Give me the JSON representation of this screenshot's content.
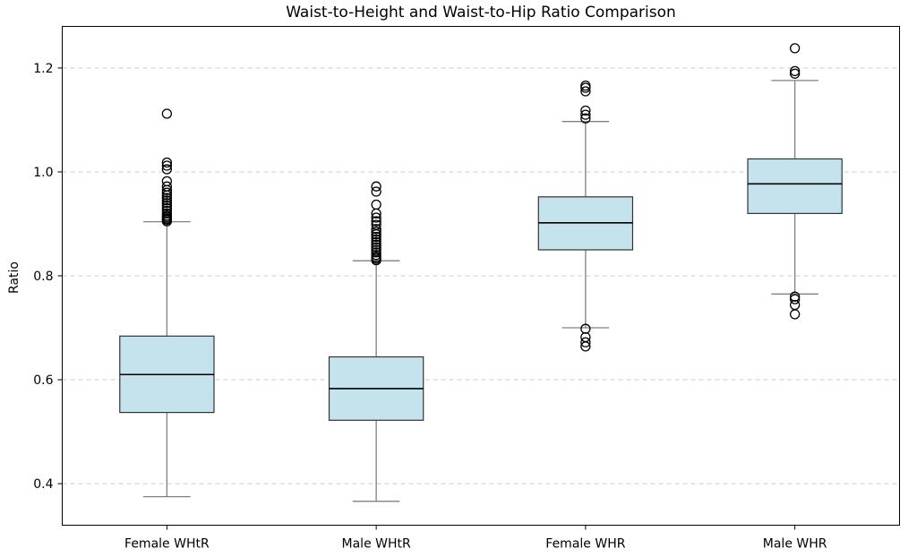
{
  "chart_data": {
    "type": "boxplot",
    "title": "Waist-to-Height and Waist-to-Hip Ratio Comparison",
    "xlabel": "",
    "ylabel": "Ratio",
    "ylim": [
      0.32,
      1.28
    ],
    "yticks": [
      0.4,
      0.6,
      0.8,
      1.0,
      1.2
    ],
    "ytick_labels": [
      "0.4",
      "0.6",
      "0.8",
      "1.0",
      "1.2"
    ],
    "grid": "y-dashed",
    "colors": {
      "box_fill": "#c4e3ed",
      "box_edge": "#333333",
      "whisker": "#808080",
      "median": "#000000"
    },
    "categories": [
      "Female WHtR",
      "Male WHtR",
      "Female WHR",
      "Male WHR"
    ],
    "boxes": [
      {
        "whislo": 0.375,
        "q1": 0.537,
        "med": 0.61,
        "q3": 0.684,
        "whishi": 0.904,
        "fliers": [
          0.905,
          0.908,
          0.91,
          0.913,
          0.916,
          0.92,
          0.925,
          0.93,
          0.935,
          0.94,
          0.945,
          0.95,
          0.955,
          0.96,
          0.965,
          0.972,
          0.982,
          1.005,
          1.012,
          1.018,
          1.112
        ]
      },
      {
        "whislo": 0.366,
        "q1": 0.522,
        "med": 0.583,
        "q3": 0.644,
        "whishi": 0.829,
        "fliers": [
          0.83,
          0.833,
          0.836,
          0.84,
          0.845,
          0.85,
          0.855,
          0.86,
          0.865,
          0.87,
          0.875,
          0.88,
          0.885,
          0.89,
          0.898,
          0.905,
          0.912,
          0.92,
          0.937,
          0.962,
          0.972
        ]
      },
      {
        "whislo": 0.7,
        "q1": 0.85,
        "med": 0.902,
        "q3": 0.952,
        "whishi": 1.097,
        "fliers": [
          0.664,
          0.672,
          0.682,
          0.698,
          1.103,
          1.11,
          1.118,
          1.155,
          1.162,
          1.166
        ]
      },
      {
        "whislo": 0.765,
        "q1": 0.92,
        "med": 0.977,
        "q3": 1.025,
        "whishi": 1.176,
        "fliers": [
          0.726,
          0.744,
          0.755,
          0.76,
          1.189,
          1.194,
          1.238
        ]
      }
    ]
  }
}
